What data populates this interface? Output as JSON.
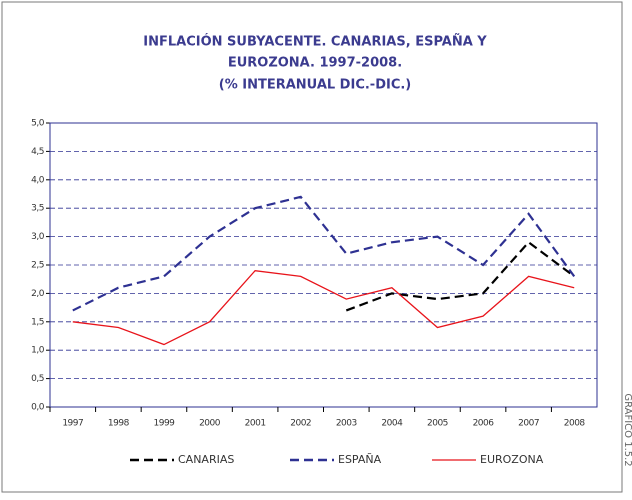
{
  "chart_data": {
    "type": "line",
    "title": [
      "INFLACIÓN SUBYACENTE. CANARIAS, ESPAÑA Y",
      "EUROZONA. 1997-2008.",
      "(% INTERANUAL DIC.-DIC.)"
    ],
    "side_label": "GRÁFICO 1.5.2",
    "categories": [
      "1997",
      "1998",
      "1999",
      "2000",
      "2001",
      "2002",
      "2003",
      "2004",
      "2005",
      "2006",
      "2007",
      "2008"
    ],
    "series": [
      {
        "name": "CANARIAS",
        "color": "#000000",
        "dash": true,
        "values": [
          null,
          null,
          null,
          null,
          null,
          null,
          1.7,
          2.0,
          1.9,
          2.0,
          2.9,
          2.3
        ]
      },
      {
        "name": "ESPAÑA",
        "color": "#2e3192",
        "dash": true,
        "values": [
          1.7,
          2.1,
          2.3,
          3.0,
          3.5,
          3.7,
          2.7,
          2.9,
          3.0,
          2.5,
          3.4,
          2.3
        ]
      },
      {
        "name": "EUROZONA",
        "color": "#e8141b",
        "dash": false,
        "values": [
          1.5,
          1.4,
          1.1,
          1.5,
          2.4,
          2.3,
          1.9,
          2.1,
          1.4,
          1.6,
          2.3,
          2.1
        ]
      }
    ],
    "ylim": [
      0,
      5
    ],
    "yticks": [
      {
        "value": 0,
        "label": "0,0"
      },
      {
        "value": 0.5,
        "label": "0,5"
      },
      {
        "value": 1,
        "label": "1,0"
      },
      {
        "value": 1.5,
        "label": "1,5"
      },
      {
        "value": 2,
        "label": "2,0"
      },
      {
        "value": 2.5,
        "label": "2,5"
      },
      {
        "value": 3,
        "label": "3,0"
      },
      {
        "value": 3.5,
        "label": "3,5"
      },
      {
        "value": 4,
        "label": "4,0"
      },
      {
        "value": 4.5,
        "label": "4,5"
      },
      {
        "value": 5,
        "label": "5,0"
      }
    ],
    "grid": true
  }
}
